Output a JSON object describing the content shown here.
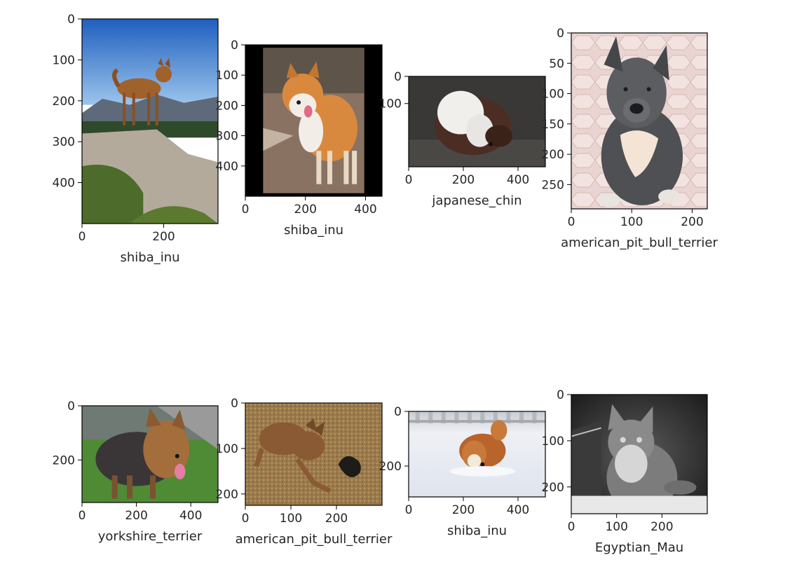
{
  "chart_data": [
    {
      "type": "image",
      "xlabel": "shiba_inu",
      "xticks": [
        0,
        200
      ],
      "yticks": [
        0,
        100,
        200,
        300,
        400
      ],
      "xlim": [
        0,
        333
      ],
      "ylim": [
        500,
        0
      ],
      "scene": "dog-on-rock",
      "colors": {
        "sky_top": "#1f5fc0",
        "sky_bottom": "#9cc4ec",
        "rock": "#b3aa9c",
        "dog": "#a0622d",
        "brush": "#4d6b2a"
      }
    },
    {
      "type": "image",
      "xlabel": "shiba_inu",
      "xticks": [
        0,
        200,
        400
      ],
      "yticks": [
        0,
        100,
        200,
        300,
        400
      ],
      "xlim": [
        0,
        455
      ],
      "ylim": [
        500,
        0
      ],
      "scene": "shiba-walking",
      "colors": {
        "border": "#000000",
        "ground": "#8a7262",
        "dog": "#d9893e",
        "chest": "#f2ede6"
      }
    },
    {
      "type": "image",
      "xlabel": "japanese_chin",
      "xticks": [
        0,
        200,
        400
      ],
      "yticks": [
        0,
        100
      ],
      "xlim": [
        0,
        500
      ],
      "ylim": [
        333,
        0
      ],
      "scene": "chin-lying",
      "colors": {
        "floor": "#3a3836",
        "fur_white": "#f0efec",
        "fur_brown": "#4b2d24"
      }
    },
    {
      "type": "image",
      "xlabel": "american_pit_bull_terrier",
      "xticks": [
        0,
        100,
        200
      ],
      "yticks": [
        0,
        50,
        100,
        150,
        200,
        250
      ],
      "xlim": [
        0,
        225
      ],
      "ylim": [
        290,
        0
      ],
      "scene": "pitbull-puppy",
      "colors": {
        "floor": "#e6cfcc",
        "dog": "#4e5053",
        "chest": "#f4e4d6"
      }
    },
    {
      "type": "image",
      "xlabel": "yorkshire_terrier",
      "xticks": [
        0,
        200,
        400
      ],
      "yticks": [
        0,
        200
      ],
      "xlim": [
        0,
        500
      ],
      "ylim": [
        357,
        0
      ],
      "scene": "terrier-grass",
      "colors": {
        "grass": "#4f8a35",
        "path": "#9a9a9a",
        "dog_dark": "#3a3536",
        "dog_tan": "#a36d3c",
        "tongue": "#e27fa3"
      }
    },
    {
      "type": "image",
      "xlabel": "american_pit_bull_terrier",
      "xticks": [
        0,
        100,
        200
      ],
      "yticks": [
        0,
        100,
        200
      ],
      "xlim": [
        0,
        300
      ],
      "ylim": [
        225,
        0
      ],
      "scene": "pitbull-carpet",
      "colors": {
        "carpet": "#9b7b4c",
        "dog": "#8a5a34",
        "toy": "#1e1c18"
      }
    },
    {
      "type": "image",
      "xlabel": "shiba_inu",
      "xticks": [
        0,
        200,
        400
      ],
      "yticks": [
        0,
        200
      ],
      "xlim": [
        0,
        500
      ],
      "ylim": [
        313,
        0
      ],
      "scene": "shiba-snow",
      "colors": {
        "snow": "#eef0f5",
        "fence": "#b7b9bf",
        "dog": "#b8642a"
      }
    },
    {
      "type": "image",
      "xlabel": "Egyptian_Mau",
      "xticks": [
        0,
        100,
        200
      ],
      "yticks": [
        0,
        100,
        200
      ],
      "xlim": [
        0,
        300
      ],
      "ylim": [
        258,
        0
      ],
      "scene": "cat-grayscale",
      "colors": {
        "background": "#2a2a2a",
        "cat": "#8a8a8a",
        "chest": "#d6d6d6"
      }
    }
  ]
}
